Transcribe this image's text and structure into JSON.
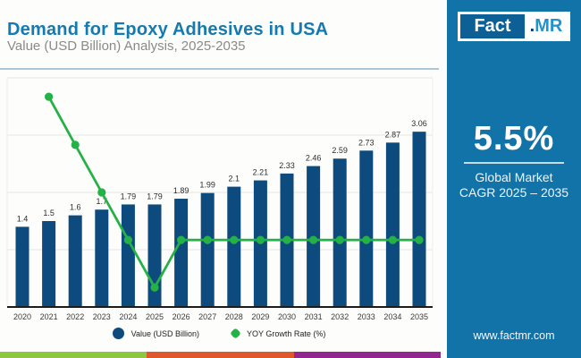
{
  "header": {
    "title": "Demand for Epoxy Adhesives in USA",
    "subtitle": "Value (USD Billion) Analysis, 2025-2035"
  },
  "colors": {
    "title_blue": "#147ab2",
    "sidebar_blue": "#1273a9",
    "axis": "#1c1c1c",
    "gridline": "#e5e5e5",
    "stripe": [
      "#8dc63f",
      "#e0572b",
      "#92278f"
    ]
  },
  "chart_data": {
    "type": "bar+line combo",
    "title": "Demand for Epoxy Adhesives in USA",
    "xlabel": "",
    "ylabel": "",
    "categories": [
      "2020",
      "2021",
      "2022",
      "2023",
      "2024",
      "2025",
      "2026",
      "2027",
      "2028",
      "2029",
      "2030",
      "2031",
      "2032",
      "2033",
      "2034",
      "2035"
    ],
    "series": [
      {
        "name": "Value (USD Billion)",
        "type": "bar",
        "color": "#0d4a7d",
        "values": [
          1.4,
          1.5,
          1.6,
          1.7,
          1.79,
          1.79,
          1.89,
          1.99,
          2.1,
          2.21,
          2.33,
          2.46,
          2.59,
          2.73,
          2.87,
          3.06
        ],
        "labels": [
          "1.4",
          "1.5",
          "1.6",
          "1.7",
          "1.79",
          "1.79",
          "1.89",
          "1.99",
          "2.1",
          "2.21",
          "2.33",
          "2.46",
          "2.59",
          "2.73",
          "2.87",
          "3.06"
        ]
      },
      {
        "name": "YOY Growth Rate (%)",
        "type": "line",
        "color": "#24b246",
        "points_primary_axis": [
          null,
          3.67,
          2.83,
          2.0,
          1.17,
          0.34,
          1.17,
          1.17,
          1.17,
          1.17,
          1.17,
          1.17,
          1.17,
          1.17,
          1.17,
          1.17
        ]
      }
    ],
    "ylim": [
      0,
      4.1
    ],
    "gridline_values": [
      1,
      2,
      3,
      4
    ],
    "y_axis_tick_labels_visible": false,
    "legend_position": "bottom"
  },
  "sidebar": {
    "bg": "#1273a9",
    "logo": {
      "fact": "Fact",
      "dot": ".",
      "mr": "MR"
    },
    "stat_value": "5.5%",
    "stat_label_line1": "Global Market",
    "stat_label_line2": "CAGR 2025 – 2035",
    "website": "www.factmr.com"
  }
}
